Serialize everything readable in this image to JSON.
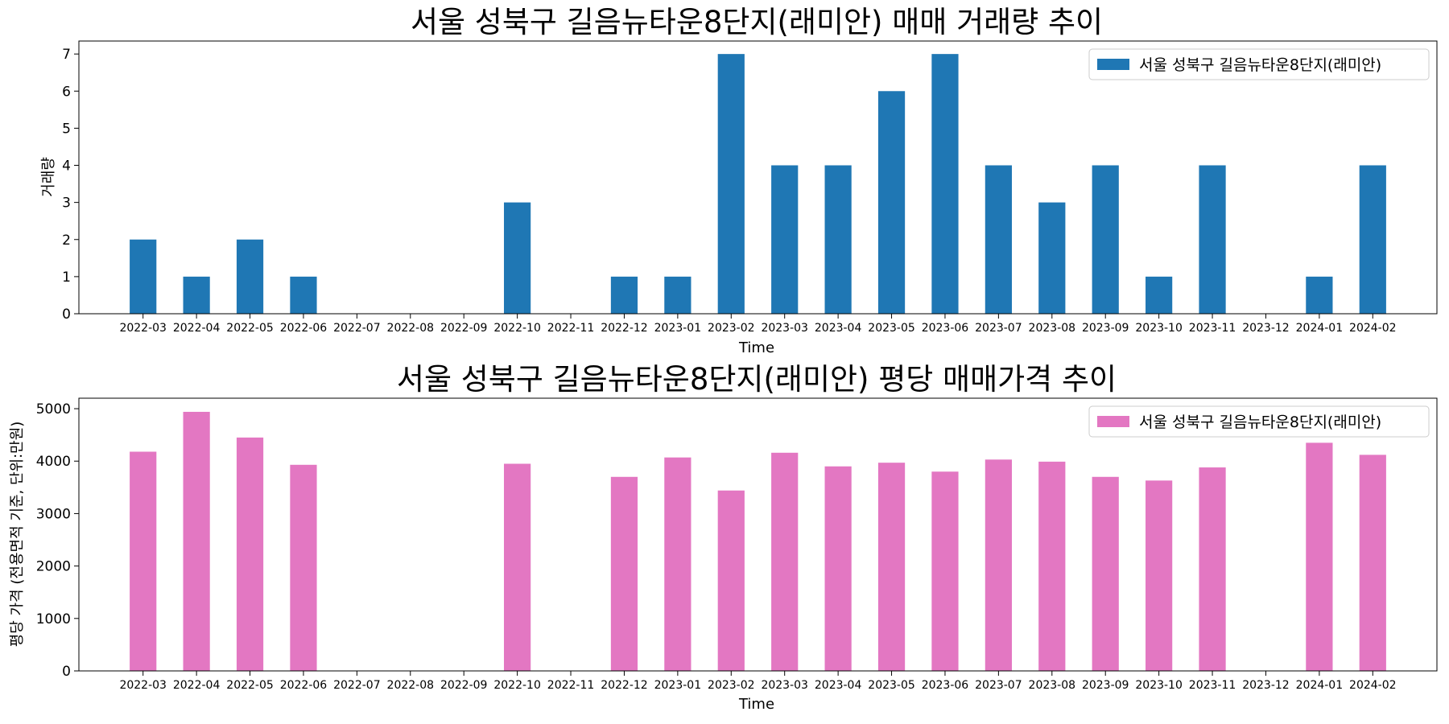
{
  "chart_data": [
    {
      "type": "bar",
      "title": "서울 성북구 길음뉴타운8단지(래미안) 매매 거래량 추이",
      "xlabel": "Time",
      "ylabel": "거래량",
      "ylim": [
        0,
        7.35
      ],
      "yticks": [
        0,
        1,
        2,
        3,
        4,
        5,
        6,
        7
      ],
      "legend_position": "top-right",
      "color": "#1f77b4",
      "categories": [
        "2022-03",
        "2022-04",
        "2022-05",
        "2022-06",
        "2022-07",
        "2022-08",
        "2022-09",
        "2022-10",
        "2022-11",
        "2022-12",
        "2023-01",
        "2023-02",
        "2023-03",
        "2023-04",
        "2023-05",
        "2023-06",
        "2023-07",
        "2023-08",
        "2023-09",
        "2023-10",
        "2023-11",
        "2023-12",
        "2024-01",
        "2024-02"
      ],
      "series": [
        {
          "name": "서울 성북구 길음뉴타운8단지(래미안)",
          "values": [
            2,
            1,
            2,
            1,
            0,
            0,
            0,
            3,
            0,
            1,
            1,
            7,
            4,
            4,
            6,
            7,
            4,
            3,
            4,
            1,
            4,
            0,
            1,
            4
          ]
        }
      ]
    },
    {
      "type": "bar",
      "title": "서울 성북구 길음뉴타운8단지(래미안) 평당 매매가격 추이",
      "xlabel": "Time",
      "ylabel": "평당 가격 (전용면적 기준, 단위:만원)",
      "ylim": [
        0,
        5200
      ],
      "yticks": [
        0,
        1000,
        2000,
        3000,
        4000,
        5000
      ],
      "legend_position": "top-right",
      "color": "#e377c2",
      "categories": [
        "2022-03",
        "2022-04",
        "2022-05",
        "2022-06",
        "2022-07",
        "2022-08",
        "2022-09",
        "2022-10",
        "2022-11",
        "2022-12",
        "2023-01",
        "2023-02",
        "2023-03",
        "2023-04",
        "2023-05",
        "2023-06",
        "2023-07",
        "2023-08",
        "2023-09",
        "2023-10",
        "2023-11",
        "2023-12",
        "2024-01",
        "2024-02"
      ],
      "series": [
        {
          "name": "서울 성북구 길음뉴타운8단지(래미안)",
          "values": [
            4180,
            4940,
            4450,
            3930,
            null,
            null,
            null,
            3950,
            null,
            3700,
            4070,
            3440,
            4160,
            3900,
            3970,
            3800,
            4030,
            3990,
            3700,
            3630,
            3880,
            null,
            4350,
            4120
          ]
        }
      ]
    }
  ]
}
